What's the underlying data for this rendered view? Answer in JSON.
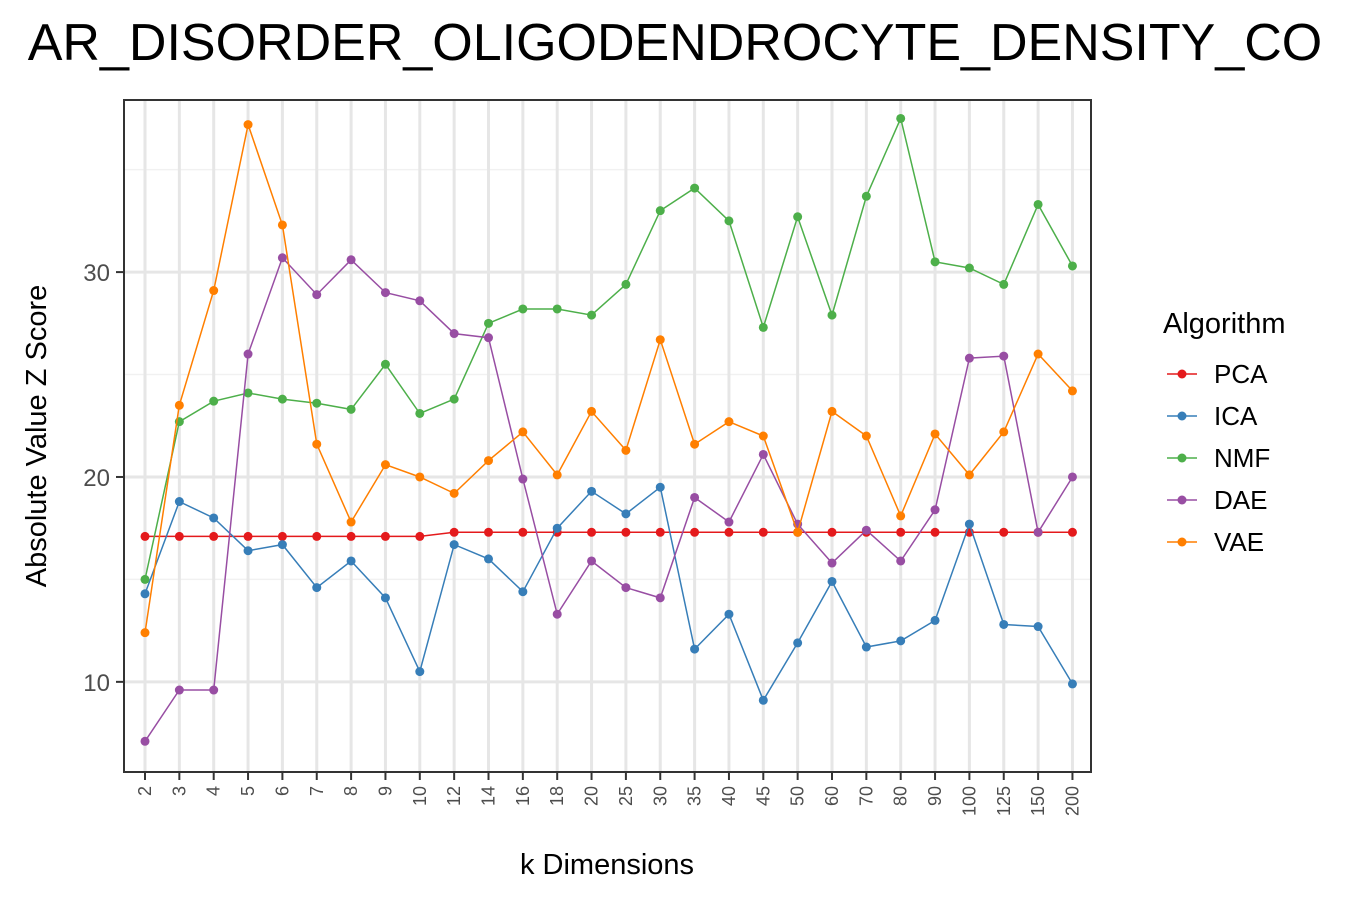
{
  "chart_data": {
    "type": "line",
    "title": "AR_DISORDER_OLIGODENDROCYTE_DENSITY_CO",
    "xlabel": "k Dimensions",
    "ylabel": "Absolute Value Z Score",
    "categories": [
      "2",
      "3",
      "4",
      "5",
      "6",
      "7",
      "8",
      "9",
      "10",
      "12",
      "14",
      "16",
      "18",
      "20",
      "25",
      "30",
      "35",
      "40",
      "45",
      "50",
      "60",
      "70",
      "80",
      "90",
      "100",
      "125",
      "150",
      "200"
    ],
    "ylim": [
      5.6,
      38.4
    ],
    "yticks": [
      10,
      20,
      30
    ],
    "grid": true,
    "legend": {
      "title": "Algorithm",
      "position": "right"
    },
    "series": [
      {
        "name": "PCA",
        "color": "#e41a1c",
        "values": [
          17.1,
          17.1,
          17.1,
          17.1,
          17.1,
          17.1,
          17.1,
          17.1,
          17.1,
          17.3,
          17.3,
          17.3,
          17.3,
          17.3,
          17.3,
          17.3,
          17.3,
          17.3,
          17.3,
          17.3,
          17.3,
          17.3,
          17.3,
          17.3,
          17.3,
          17.3,
          17.3,
          17.3
        ]
      },
      {
        "name": "ICA",
        "color": "#377eb8",
        "values": [
          14.3,
          18.8,
          18.0,
          16.4,
          16.7,
          14.6,
          15.9,
          14.1,
          10.5,
          16.7,
          16.0,
          14.4,
          17.5,
          19.3,
          18.2,
          19.5,
          11.6,
          13.3,
          9.1,
          11.9,
          14.9,
          11.7,
          12.0,
          13.0,
          17.7,
          12.8,
          12.7,
          9.9
        ]
      },
      {
        "name": "NMF",
        "color": "#4daf4a",
        "values": [
          15.0,
          22.7,
          23.7,
          24.1,
          23.8,
          23.6,
          23.3,
          25.5,
          23.1,
          23.8,
          27.5,
          28.2,
          28.2,
          27.9,
          29.4,
          33.0,
          34.1,
          32.5,
          27.3,
          32.7,
          27.9,
          33.7,
          37.5,
          30.5,
          30.2,
          29.4,
          33.3,
          30.3
        ]
      },
      {
        "name": "DAE",
        "color": "#984ea3",
        "values": [
          7.1,
          9.6,
          9.6,
          26.0,
          30.7,
          28.9,
          30.6,
          29.0,
          28.6,
          27.0,
          26.8,
          19.9,
          13.3,
          15.9,
          14.6,
          14.1,
          19.0,
          17.8,
          21.1,
          17.7,
          15.8,
          17.4,
          15.9,
          18.4,
          25.8,
          25.9,
          17.3,
          20.0
        ]
      },
      {
        "name": "VAE",
        "color": "#ff7f00",
        "values": [
          12.4,
          23.5,
          29.1,
          37.2,
          32.3,
          21.6,
          17.8,
          20.6,
          20.0,
          19.2,
          20.8,
          22.2,
          20.1,
          23.2,
          21.3,
          26.7,
          21.6,
          22.7,
          22.0,
          17.3,
          23.2,
          22.0,
          18.1,
          22.1,
          20.1,
          22.2,
          26.0,
          24.2
        ]
      }
    ]
  }
}
